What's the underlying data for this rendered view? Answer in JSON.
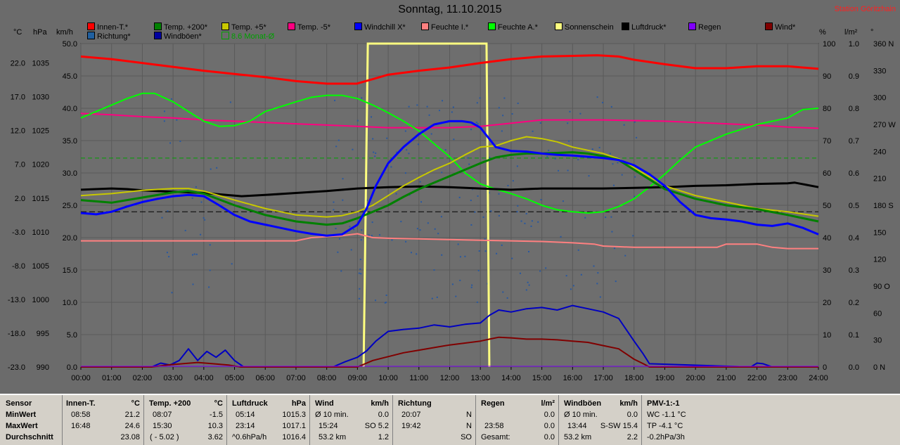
{
  "title": "Sonntag, 11.10.2015",
  "station": "Station Göritzhain",
  "legend": [
    {
      "label": "Innen-T.*",
      "color": "#ff0000"
    },
    {
      "label": "Temp. +200*",
      "color": "#008000"
    },
    {
      "label": "Temp. +5*",
      "color": "#c8c800"
    },
    {
      "label": "Temp. -5*",
      "color": "#ff0080"
    },
    {
      "label": "Windchill X*",
      "color": "#0000ff"
    },
    {
      "label": "Feuchte I.*",
      "color": "#ff8080"
    },
    {
      "label": "Feuchte A.*",
      "color": "#00ff00"
    },
    {
      "label": "Sonnenschein",
      "color": "#ffff80"
    },
    {
      "label": "Luftdruck*",
      "color": "#000000"
    },
    {
      "label": "Regen",
      "color": "#8000ff"
    },
    {
      "label": "Wind*",
      "color": "#800000"
    },
    {
      "label": "Richtung*",
      "color": "#2060a0"
    },
    {
      "label": "Windböen*",
      "color": "#0000a0"
    },
    {
      "label": "8.6 Monat-Ø",
      "color": "#00a000"
    }
  ],
  "units": {
    "temp": "°C",
    "press": "hPa",
    "speed": "km/h",
    "hum": "%",
    "rain": "l/m²",
    "dir": "°"
  },
  "chart_data": {
    "type": "line",
    "x_labels": [
      "00:00",
      "01:00",
      "02:00",
      "03:00",
      "04:00",
      "05:00",
      "06:00",
      "07:00",
      "08:00",
      "09:00",
      "10:00",
      "11:00",
      "12:00",
      "13:00",
      "14:00",
      "15:00",
      "16:00",
      "17:00",
      "18:00",
      "19:00",
      "20:00",
      "21:00",
      "22:00",
      "23:00",
      "24:00"
    ],
    "axes": {
      "temp_ticks": [
        "22.0",
        "17.0",
        "12.0",
        "7.0",
        "2.0",
        "-3.0",
        "-8.0",
        "-13.0",
        "-18.0",
        "-23.0"
      ],
      "press_ticks": [
        "1035",
        "1030",
        "1025",
        "1020",
        "1015",
        "1010",
        "1005",
        "1000",
        "995",
        "990"
      ],
      "speed_ticks": [
        "50.0",
        "45.0",
        "40.0",
        "35.0",
        "30.0",
        "25.0",
        "20.0",
        "15.0",
        "10.0",
        "5.0",
        "0.0"
      ],
      "hum_ticks": [
        "100",
        "90",
        "80",
        "70",
        "60",
        "50",
        "40",
        "30",
        "20",
        "10",
        "0"
      ],
      "rain_ticks": [
        "1.0",
        "0.9",
        "0.8",
        "0.7",
        "0.6",
        "0.5",
        "0.4",
        "0.3",
        "0.2",
        "0.1",
        "0.0"
      ],
      "dir_ticks": [
        "360 N",
        "330",
        "300",
        "270 W",
        "240",
        "210",
        "180 S",
        "150",
        "120",
        "90 O",
        "60",
        "30",
        "0 N"
      ],
      "speed_range": [
        0,
        50
      ]
    },
    "reference_lines": {
      "monthly_avg_speed": 32.3,
      "dashed_speed": 24.0
    },
    "sunshine": [
      9.2,
      13.2
    ],
    "series": [
      {
        "name": "Innen-T.*",
        "color": "#ff0000",
        "width": 3,
        "x": [
          0,
          1,
          2,
          3,
          4,
          5,
          6,
          7,
          8,
          8.98,
          9.5,
          10,
          11,
          12,
          13,
          14,
          15,
          16,
          16.8,
          17.5,
          18,
          19,
          20,
          21,
          22,
          23,
          24
        ],
        "y": [
          48.0,
          47.6,
          47.0,
          46.4,
          45.8,
          45.3,
          44.8,
          44.2,
          43.8,
          43.8,
          44.5,
          45.2,
          45.8,
          46.3,
          47.0,
          47.6,
          48.0,
          48.1,
          48.2,
          48.0,
          47.5,
          46.8,
          46.2,
          46.2,
          46.5,
          46.5,
          46.1
        ]
      },
      {
        "name": "Temp. -5*",
        "color": "#ff0080",
        "width": 2,
        "x": [
          0,
          1,
          2,
          3,
          4,
          5,
          6,
          7,
          8,
          9,
          10,
          11,
          12,
          13,
          14,
          15,
          16,
          17,
          18,
          19,
          20,
          21,
          22,
          23,
          24
        ],
        "y": [
          39.2,
          39.0,
          38.7,
          38.5,
          38.2,
          38.0,
          37.8,
          37.6,
          37.4,
          37.2,
          37.0,
          37.0,
          37.0,
          37.2,
          37.7,
          38.2,
          38.2,
          38.2,
          38.1,
          38.0,
          37.8,
          37.6,
          37.4,
          37.1,
          36.9
        ]
      },
      {
        "name": "Feuchte A.*",
        "color": "#00ff00",
        "width": 2,
        "x": [
          0,
          0.5,
          1,
          1.5,
          2,
          2.4,
          3,
          3.5,
          4,
          4.5,
          5,
          5.5,
          6,
          7,
          7.5,
          8,
          8.5,
          9,
          9.5,
          10,
          10.5,
          11,
          11.5,
          12,
          12.5,
          13,
          13.5,
          14,
          14.5,
          15,
          15.5,
          16,
          16.5,
          17,
          17.5,
          18,
          18.5,
          19,
          19.5,
          20,
          21,
          22,
          23,
          23.5,
          24
        ],
        "y": [
          38.5,
          39.5,
          40.5,
          41.5,
          42.3,
          42.3,
          41.0,
          39.5,
          38.0,
          37.2,
          37.3,
          38.0,
          39.5,
          41.0,
          41.7,
          42.0,
          42.0,
          41.5,
          40.5,
          39.3,
          38.0,
          36.5,
          34.5,
          32.5,
          30.0,
          28.3,
          27.5,
          26.8,
          26.0,
          25.0,
          24.3,
          24.0,
          23.8,
          24.0,
          24.8,
          26.0,
          27.8,
          29.8,
          32.0,
          34.0,
          36.0,
          37.5,
          38.5,
          39.8,
          40.0
        ]
      },
      {
        "name": "Feuchte I.*",
        "color": "#ff8080",
        "width": 2,
        "x": [
          0,
          7,
          7.5,
          8.5,
          9,
          9.5,
          10,
          11,
          12,
          13,
          14,
          15,
          16,
          16.7,
          17,
          18,
          19,
          20,
          20.7,
          21,
          22,
          22.5,
          23,
          24
        ],
        "y": [
          19.5,
          19.5,
          20.0,
          20.3,
          20.6,
          20.0,
          19.9,
          19.8,
          19.7,
          19.6,
          19.5,
          19.4,
          19.2,
          19.0,
          18.7,
          18.5,
          18.5,
          18.5,
          18.5,
          19.0,
          19.0,
          18.5,
          18.3,
          18.3
        ]
      },
      {
        "name": "Luftdruck*",
        "color": "#000000",
        "width": 3,
        "x": [
          0,
          1,
          1.5,
          2,
          3,
          4,
          5,
          5.23,
          6,
          7,
          8,
          9,
          10,
          11,
          12,
          13,
          14,
          15,
          16,
          17,
          18,
          19,
          20,
          21,
          22,
          23,
          23.23,
          24
        ],
        "y": [
          27.4,
          27.6,
          27.5,
          27.3,
          27.1,
          26.9,
          26.5,
          26.4,
          26.6,
          26.9,
          27.2,
          27.6,
          27.8,
          27.9,
          27.8,
          27.6,
          27.4,
          27.6,
          27.6,
          27.6,
          27.7,
          27.8,
          28.0,
          28.1,
          28.3,
          28.4,
          28.5,
          27.8
        ]
      },
      {
        "name": "Temp. +5*",
        "color": "#c8c800",
        "width": 2,
        "x": [
          0,
          1,
          2,
          3,
          3.5,
          4,
          5,
          6,
          7,
          8,
          8.5,
          9,
          9.5,
          10,
          10.5,
          11,
          11.5,
          12,
          12.5,
          13,
          13.5,
          14,
          14.5,
          15,
          15.5,
          16,
          16.5,
          17,
          17.5,
          18,
          19,
          20,
          21,
          22,
          23,
          24
        ],
        "y": [
          26.5,
          26.8,
          27.3,
          27.6,
          27.6,
          27.2,
          25.8,
          24.5,
          23.5,
          23.2,
          23.4,
          24.0,
          25.0,
          26.5,
          28.0,
          29.3,
          30.5,
          31.5,
          32.8,
          34.0,
          34.2,
          35.0,
          35.6,
          35.3,
          34.8,
          34.0,
          33.5,
          33.0,
          32.2,
          30.8,
          28.0,
          26.5,
          25.5,
          24.5,
          24.0,
          23.3
        ]
      },
      {
        "name": "Temp. +200*",
        "color": "#008000",
        "width": 3,
        "x": [
          0,
          1,
          2,
          3,
          3.5,
          4,
          5,
          6,
          7,
          8,
          8.5,
          9,
          9.5,
          10,
          10.5,
          11,
          11.5,
          12,
          12.5,
          13,
          13.5,
          14,
          14.5,
          15,
          15.5,
          16,
          16.5,
          17,
          17.5,
          18,
          19,
          20,
          21,
          22,
          23,
          24
        ],
        "y": [
          25.8,
          25.4,
          26.2,
          27.0,
          27.2,
          26.8,
          25.0,
          23.5,
          22.5,
          22.0,
          22.2,
          23.0,
          24.0,
          25.0,
          26.3,
          27.5,
          28.5,
          29.5,
          30.5,
          31.5,
          32.4,
          32.8,
          33.0,
          33.0,
          33.1,
          33.2,
          33.0,
          32.6,
          32.0,
          30.5,
          27.5,
          26.0,
          25.0,
          24.4,
          23.5,
          22.5
        ]
      },
      {
        "name": "Windchill X*",
        "color": "#0000ff",
        "width": 3,
        "x": [
          0,
          0.5,
          1,
          1.5,
          2,
          2.5,
          3,
          3.5,
          4,
          4.5,
          5,
          5.5,
          6,
          6.5,
          7,
          7.5,
          8,
          8.5,
          9,
          9.3,
          9.6,
          10,
          10.5,
          11,
          11.5,
          12,
          12.4,
          12.7,
          13,
          13.5,
          14,
          14.5,
          15,
          15.5,
          16,
          16.5,
          17,
          17.5,
          18,
          18.5,
          19,
          19.5,
          20,
          20.5,
          21,
          21.5,
          22,
          22.5,
          23,
          23.5,
          24
        ],
        "y": [
          23.8,
          23.6,
          24.0,
          24.8,
          25.5,
          26.0,
          26.4,
          26.6,
          26.4,
          25.0,
          23.5,
          22.5,
          22.0,
          21.5,
          21.0,
          20.6,
          20.3,
          20.5,
          22.0,
          24.5,
          28.0,
          31.5,
          34.0,
          36.0,
          37.5,
          38.0,
          38.0,
          37.8,
          37.0,
          34.0,
          33.4,
          33.3,
          33.0,
          32.8,
          32.7,
          32.5,
          32.3,
          32.0,
          31.2,
          29.8,
          28.0,
          25.5,
          23.5,
          23.0,
          22.8,
          22.5,
          22.0,
          21.8,
          22.2,
          21.5,
          20.5
        ]
      },
      {
        "name": "Windböen*",
        "color": "#0000c0",
        "width": 2,
        "x": [
          0,
          2.3,
          2.6,
          2.9,
          3.2,
          3.5,
          3.8,
          4.1,
          4.4,
          4.7,
          5.0,
          5.3,
          8.2,
          8.6,
          9.0,
          9.3,
          9.6,
          10.0,
          10.5,
          11,
          11.5,
          12,
          12.5,
          13,
          13.3,
          13.6,
          14,
          14.5,
          15,
          15.5,
          16,
          16.5,
          17,
          17.5,
          18,
          18.3,
          18.5,
          21.8,
          22,
          22.2,
          22.5,
          24
        ],
        "y": [
          0,
          0,
          0.6,
          0.3,
          1.0,
          2.8,
          1.0,
          2.4,
          1.5,
          2.6,
          1.0,
          0,
          0,
          0.8,
          1.5,
          2.5,
          4.0,
          5.5,
          5.8,
          6.0,
          6.5,
          6.2,
          6.6,
          6.8,
          8.0,
          8.8,
          8.5,
          9.0,
          9.2,
          8.8,
          9.5,
          9.0,
          8.5,
          7.5,
          4.0,
          2.0,
          0.5,
          0,
          0.6,
          0.5,
          0,
          0
        ]
      },
      {
        "name": "Wind*",
        "color": "#800000",
        "width": 2,
        "x": [
          0,
          2.3,
          2.8,
          3.3,
          3.8,
          4.3,
          4.8,
          5.2,
          9.0,
          9.5,
          10,
          10.5,
          11,
          11.5,
          12,
          12.5,
          13,
          13.3,
          13.6,
          14,
          14.5,
          15,
          15.5,
          16,
          16.5,
          17,
          17.5,
          18,
          18.3,
          18.5,
          24
        ],
        "y": [
          0,
          0,
          0.3,
          0.5,
          0.7,
          0.5,
          0.3,
          0,
          0,
          1.0,
          1.6,
          2.2,
          2.6,
          3.0,
          3.4,
          3.7,
          4.0,
          4.3,
          4.6,
          4.5,
          4.3,
          4.3,
          4.2,
          4.0,
          3.8,
          3.3,
          2.8,
          1.2,
          0.5,
          0,
          0
        ]
      }
    ]
  },
  "stats": {
    "sensor": {
      "header": "Sensor",
      "rows": [
        "MinWert",
        "MaxWert",
        "Durchschnitt"
      ]
    },
    "innen": {
      "header": "Innen-T.",
      "unit": "°C",
      "min_time": "08:58",
      "min_val": "21.2",
      "max_time": "16:48",
      "max_val": "24.6",
      "avg": "23.08"
    },
    "temp200": {
      "header": "Temp. +200",
      "unit": "°C",
      "min_time": "08:07",
      "min_val": "-1.5",
      "max_time": "15:30",
      "max_val": "10.3",
      "avg_label": "( - 5.02 )",
      "avg": "3.62"
    },
    "luftdruck": {
      "header": "Luftdruck",
      "unit": "hPa",
      "min_time": "05:14",
      "min_val": "1015.3",
      "max_time": "23:14",
      "max_val": "1017.1",
      "avg_label": "^0.6hPa/h",
      "avg": "1016.4"
    },
    "wind": {
      "header": "Wind",
      "unit": "km/h",
      "min_time": "Ø 10 min.",
      "min_val": "0.0",
      "max_time": "15:24",
      "max_val": "SO 5.2",
      "avg_label": "53.2 km",
      "avg": "1.2"
    },
    "richtung": {
      "header": "Richtung",
      "min_time": "20:07",
      "min_val": "N",
      "max_time": "19:42",
      "max_val": "N",
      "avg": "SO"
    },
    "regen": {
      "header": "Regen",
      "unit": "l/m²",
      "min_val": "0.0",
      "max_time": "23:58",
      "max_val": "0.0",
      "avg_label": "Gesamt:",
      "avg": "0.0"
    },
    "windboen": {
      "header": "Windböen",
      "unit": "km/h",
      "min_time": "Ø 10 min.",
      "min_val": "0.0",
      "max_time": "13:44",
      "max_val": "S-SW 15.4",
      "avg_label": "53.2 km",
      "avg": "2.2"
    },
    "pmv": {
      "header": "PMV-1:-1",
      "min": "WC -1.1 °C",
      "max": "TP -4.1 °C",
      "avg": "-0.2hPa/3h"
    }
  }
}
